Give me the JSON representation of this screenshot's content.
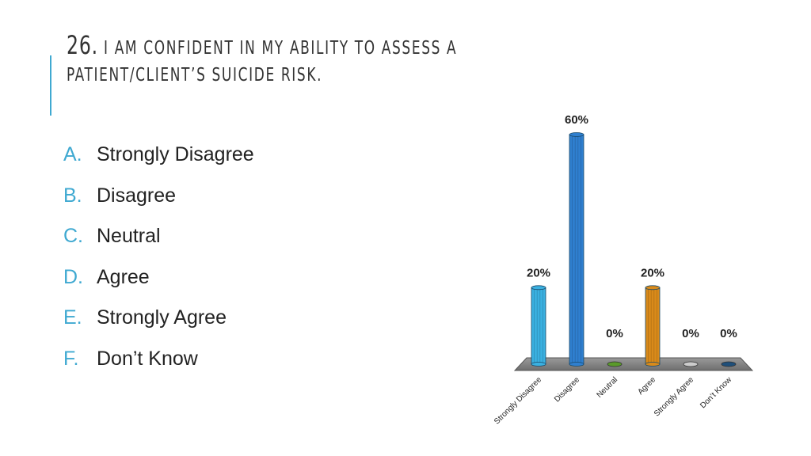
{
  "slide": {
    "question_number": "26.",
    "question_text": "I am confident in my ability to assess a patient/client’s suicide risk."
  },
  "options": [
    {
      "letter": "A.",
      "label": "Strongly Disagree"
    },
    {
      "letter": "B.",
      "label": "Disagree"
    },
    {
      "letter": "C.",
      "label": "Neutral"
    },
    {
      "letter": "D.",
      "label": "Agree"
    },
    {
      "letter": "E.",
      "label": "Strongly Agree"
    },
    {
      "letter": "F.",
      "label": "Don’t Know"
    }
  ],
  "colors": {
    "accent": "#3fa9d1",
    "bars": [
      "#3ab0e0",
      "#2f7fcf",
      "#5a9a2a",
      "#d98a1a",
      "#cccccc",
      "#1f4f7a"
    ]
  },
  "chart_data": {
    "type": "bar",
    "title": "",
    "categories": [
      "Strongly Disagree",
      "Disagree",
      "Neutral",
      "Agree",
      "Strongly Agree",
      "Don’t Know"
    ],
    "values": [
      20,
      60,
      0,
      20,
      0,
      0
    ],
    "data_labels": [
      "20%",
      "60%",
      "0%",
      "20%",
      "0%",
      "0%"
    ],
    "ylim": [
      0,
      60
    ],
    "xlabel": "",
    "ylabel": "",
    "grid": false,
    "legend": "none"
  }
}
